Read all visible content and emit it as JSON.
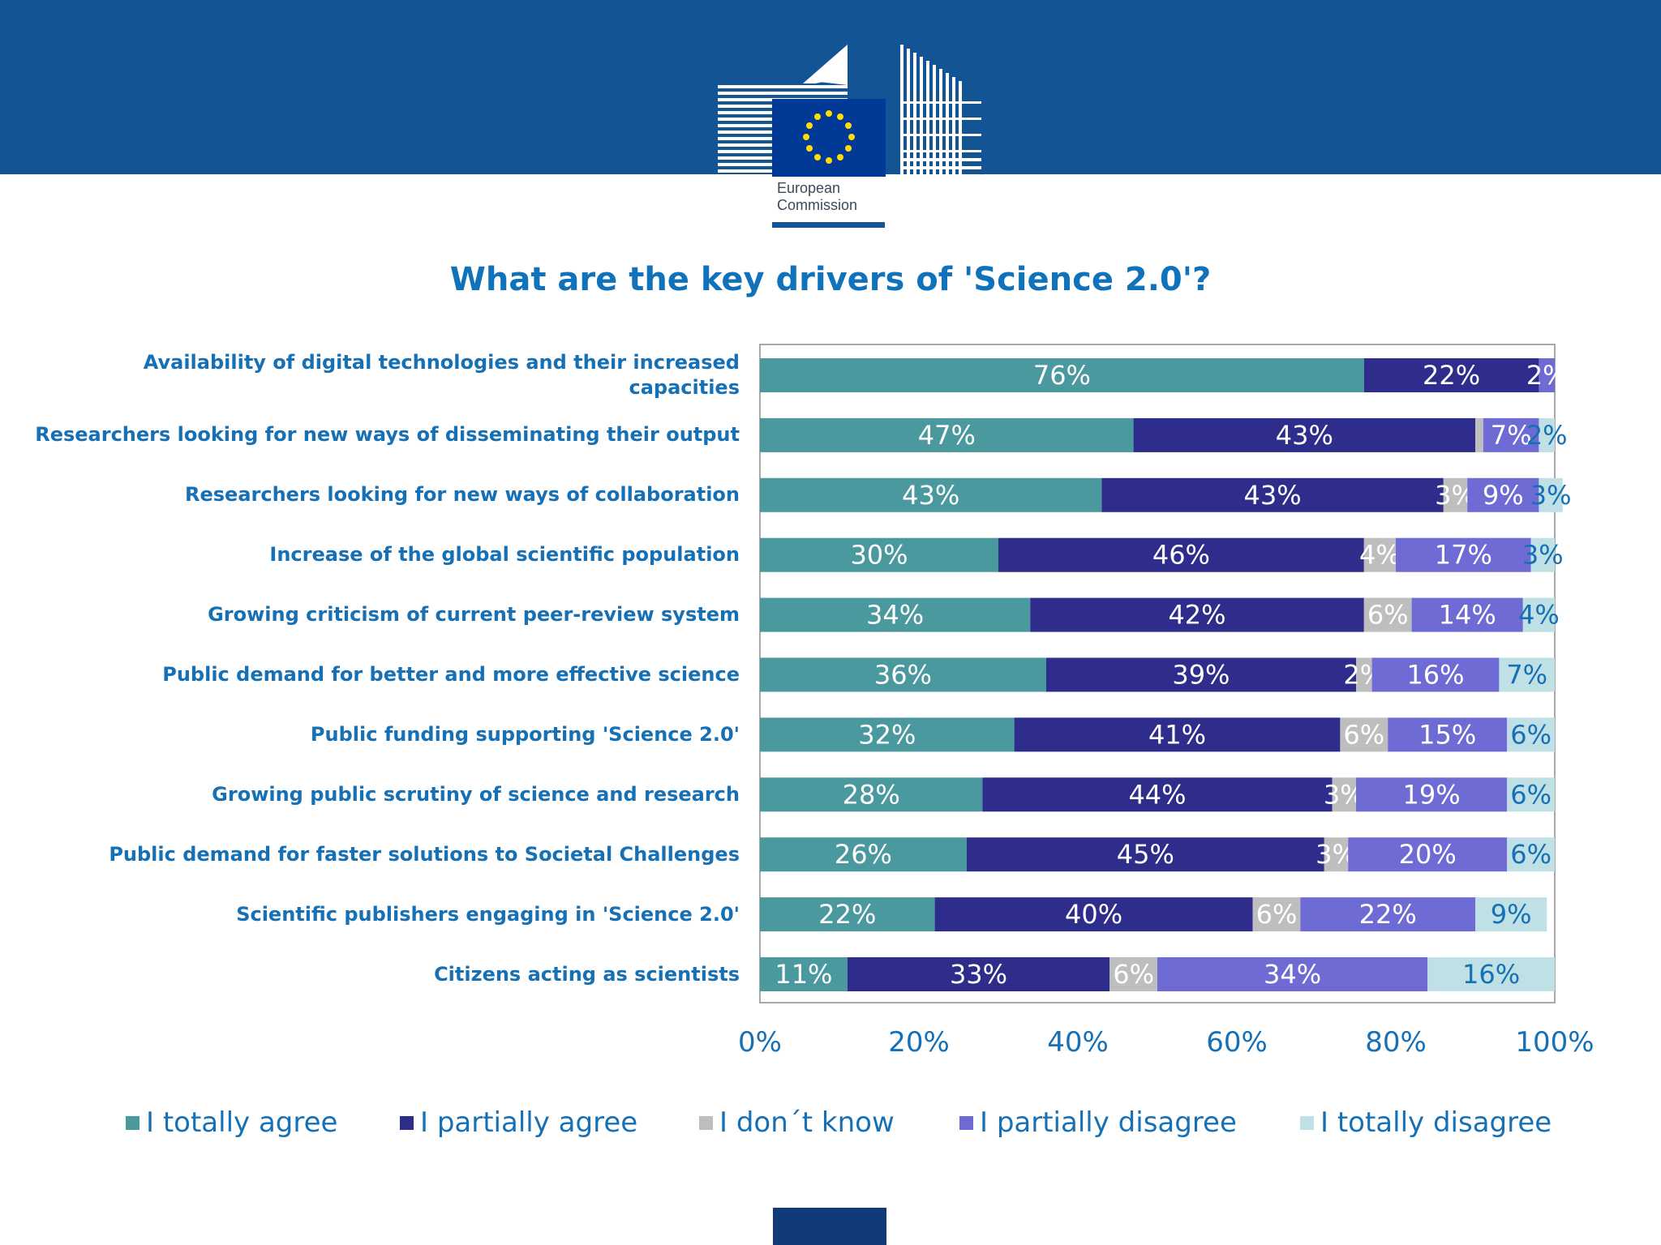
{
  "header": {
    "logo_text": "European\nCommission",
    "logo_icon": "eu-flag-with-building-icon",
    "band_color": "#135594"
  },
  "chart_data": {
    "type": "bar",
    "orientation": "horizontal",
    "stacked": true,
    "title": "What are the key drivers of 'Science 2.0'?",
    "xlabel": "",
    "ylabel": "",
    "xlim": [
      0,
      100
    ],
    "x_ticks": [
      "0%",
      "20%",
      "40%",
      "60%",
      "80%",
      "100%"
    ],
    "categories": [
      "Availability of  digital technologies  and their increased capacities",
      "Researchers looking  for new ways of  disseminating their output",
      "Researchers looking  for new ways of  collaboration",
      "Increase of the  global scientific  population",
      "Growing criticism of  current peer-review  system",
      "Public demand for  better and more  effective science",
      "Public funding  supporting 'Science  2.0'",
      "Growing public  scrutiny of science  and research",
      "Public demand for  faster solutions to  Societal Challenges",
      "Scientific  publishers engaging  in 'Science 2.0'",
      "Citizens acting as  scientists"
    ],
    "series": [
      {
        "name": "I totally agree",
        "color": "#4a999e",
        "label_color": "#ffffff",
        "values": [
          76,
          47,
          43,
          30,
          34,
          36,
          32,
          28,
          26,
          22,
          11
        ]
      },
      {
        "name": "I partially agree",
        "color": "#2e2d8c",
        "label_color": "#ffffff",
        "values": [
          22,
          43,
          43,
          46,
          42,
          39,
          41,
          44,
          45,
          40,
          33
        ]
      },
      {
        "name": "I don´t know",
        "color": "#bebebe",
        "label_color": "#ffffff",
        "values": [
          0,
          1,
          3,
          4,
          6,
          2,
          6,
          3,
          3,
          6,
          6
        ]
      },
      {
        "name": "I partially disagree",
        "color": "#6f6bd4",
        "label_color": "#ffffff",
        "values": [
          2,
          7,
          9,
          17,
          14,
          16,
          15,
          19,
          20,
          22,
          34
        ]
      },
      {
        "name": "I totally disagree",
        "color": "#bfe0e5",
        "label_color": "#1670b6",
        "values": [
          0,
          2,
          3,
          3,
          4,
          7,
          6,
          6,
          6,
          9,
          16
        ]
      }
    ],
    "data_labels": [
      [
        "76%",
        "22%",
        "",
        "2%",
        ""
      ],
      [
        "47%",
        "43%",
        "",
        "7%",
        "2%"
      ],
      [
        "43%",
        "43%",
        "3%",
        "9%",
        "3%"
      ],
      [
        "30%",
        "46%",
        "4%",
        "17%",
        "3%"
      ],
      [
        "34%",
        "42%",
        "6%",
        "14%",
        "4%"
      ],
      [
        "36%",
        "39%",
        "2%",
        "16%",
        "7%"
      ],
      [
        "32%",
        "41%",
        "6%",
        "15%",
        "6%"
      ],
      [
        "28%",
        "44%",
        "3%",
        "19%",
        "6%"
      ],
      [
        "26%",
        "45%",
        "3%",
        "20%",
        "6%"
      ],
      [
        "22%",
        "40%",
        "6%",
        "22%",
        "9%"
      ],
      [
        "11%",
        "33%",
        "6%",
        "34%",
        "16%"
      ]
    ],
    "legend": {
      "position": "bottom"
    },
    "grid": false
  }
}
